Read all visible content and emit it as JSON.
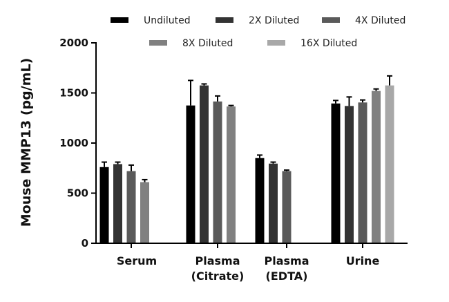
{
  "chart_data": {
    "type": "bar",
    "title": "",
    "xlabel": "",
    "ylabel": "Mouse MMP13 (pg/mL)",
    "ylim": [
      0,
      2000
    ],
    "yticks": [
      0,
      500,
      1000,
      1500,
      2000
    ],
    "categories": [
      [
        "Serum"
      ],
      [
        "Plasma",
        "(Citrate)"
      ],
      [
        "Plasma",
        "(EDTA)"
      ],
      [
        "Urine"
      ]
    ],
    "legend_position": "top",
    "error_bars": true,
    "series": [
      {
        "name": "Undiluted",
        "color": "#000000",
        "values": [
          760,
          1375,
          850,
          1395
        ],
        "errors": [
          50,
          250,
          30,
          30
        ]
      },
      {
        "name": "2X Diluted",
        "color": "#333333",
        "values": [
          790,
          1575,
          795,
          1370
        ],
        "errors": [
          20,
          15,
          15,
          90
        ]
      },
      {
        "name": "4X Diluted",
        "color": "#5a5a5a",
        "values": [
          720,
          1415,
          720,
          1405
        ],
        "errors": [
          60,
          55,
          10,
          25
        ]
      },
      {
        "name": "8X Diluted",
        "color": "#808080",
        "values": [
          610,
          1365,
          null,
          1520
        ],
        "errors": [
          25,
          10,
          null,
          20
        ]
      },
      {
        "name": "16X Diluted",
        "color": "#a8a8a8",
        "values": [
          null,
          null,
          null,
          1575
        ],
        "errors": [
          null,
          null,
          null,
          95
        ]
      }
    ]
  }
}
